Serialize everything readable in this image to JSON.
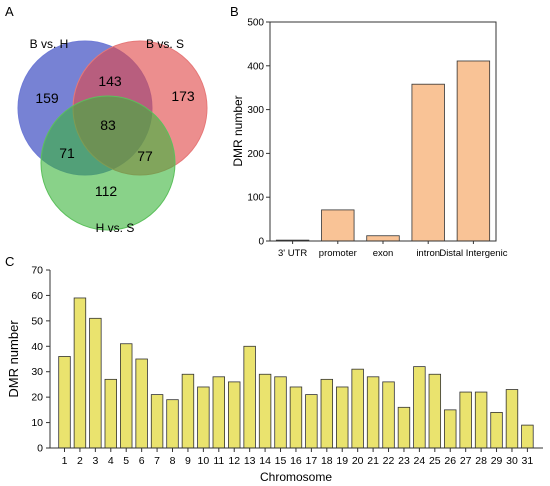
{
  "panels": {
    "a": {
      "letter": "A",
      "sets": [
        {
          "label": "B vs. H",
          "color": "#4352c4"
        },
        {
          "label": "B vs. S",
          "color": "#e04848"
        },
        {
          "label": "H vs. S",
          "color": "#3ab43a"
        }
      ],
      "regions": {
        "only_BH": "159",
        "only_BS": "173",
        "only_HS": "112",
        "BH_BS": "143",
        "BH_HS": "71",
        "BS_HS": "77",
        "all": "83"
      }
    },
    "b": {
      "letter": "B"
    },
    "c": {
      "letter": "C"
    }
  },
  "chart_data": [
    {
      "type": "venn",
      "sets": [
        "B vs. H",
        "B vs. S",
        "H vs. S"
      ],
      "regions": {
        "B vs. H only": 159,
        "B vs. S only": 173,
        "H vs. S only": 112,
        "B vs. H & B vs. S": 143,
        "B vs. H & H vs. S": 71,
        "B vs. S & H vs. S": 77,
        "all three": 83
      }
    },
    {
      "type": "bar",
      "categories": [
        "3' UTR",
        "promoter",
        "exon",
        "intron",
        "Distal Intergenic"
      ],
      "values": [
        2,
        71,
        12,
        358,
        411
      ],
      "ylabel": "DMR number",
      "ylim": [
        0,
        500
      ],
      "yticks": [
        0,
        100,
        200,
        300,
        400,
        500
      ],
      "bar_color": "#f9c396",
      "grid": false
    },
    {
      "type": "bar",
      "categories": [
        "1",
        "2",
        "3",
        "4",
        "5",
        "6",
        "7",
        "8",
        "9",
        "10",
        "11",
        "12",
        "13",
        "14",
        "15",
        "16",
        "17",
        "18",
        "19",
        "20",
        "21",
        "22",
        "23",
        "24",
        "25",
        "26",
        "27",
        "28",
        "29",
        "30",
        "31"
      ],
      "values": [
        36,
        59,
        51,
        27,
        41,
        35,
        21,
        19,
        29,
        24,
        28,
        26,
        40,
        29,
        28,
        24,
        21,
        27,
        24,
        31,
        28,
        26,
        16,
        32,
        29,
        15,
        22,
        22,
        14,
        23,
        9
      ],
      "xlabel": "Chromosome",
      "ylabel": "DMR number",
      "ylim": [
        0,
        70
      ],
      "yticks": [
        0,
        10,
        20,
        30,
        40,
        50,
        60,
        70
      ],
      "bar_color": "#eae36e",
      "grid": false
    }
  ]
}
